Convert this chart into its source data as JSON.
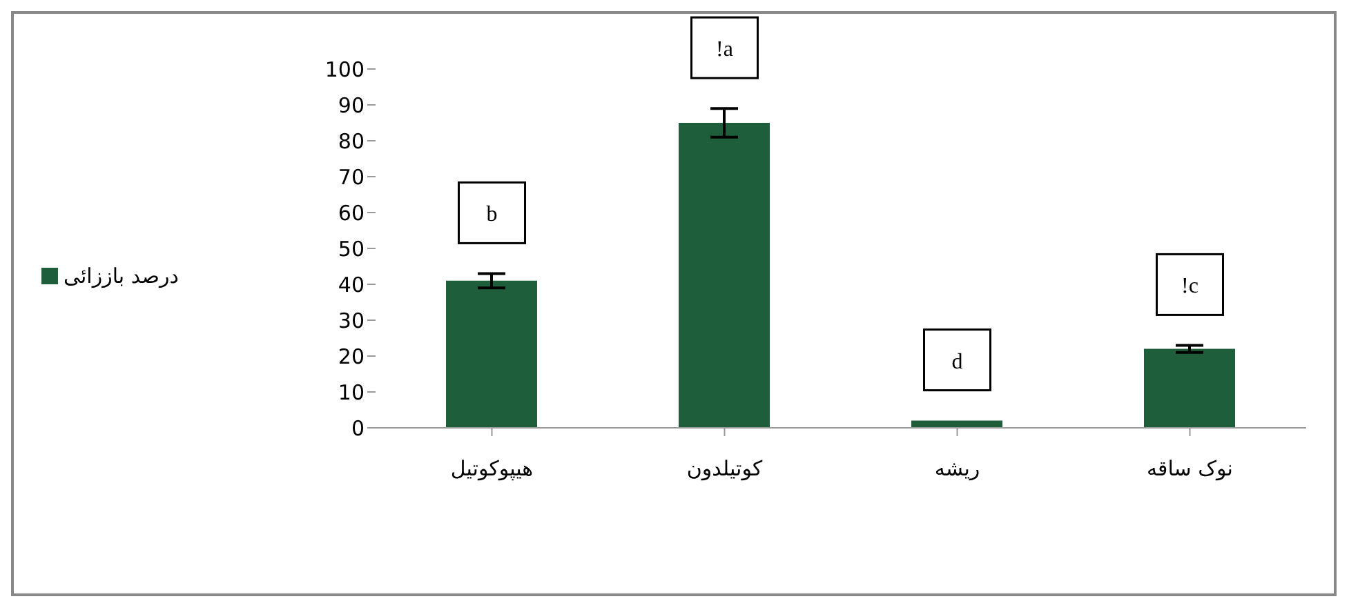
{
  "chart_data": {
    "type": "bar",
    "categories": [
      "هیپوکوتیل",
      "کوتیلدون",
      "ریشه",
      "نوک ساقه"
    ],
    "series": [
      {
        "name": "درصد باززائی",
        "color": "#1e5e3a",
        "values": [
          41,
          85,
          2,
          22
        ],
        "errors": [
          2,
          4,
          null,
          1
        ]
      }
    ],
    "ylim": [
      0,
      100
    ],
    "yticks": [
      0,
      10,
      20,
      30,
      40,
      50,
      60,
      70,
      80,
      90,
      100
    ],
    "grid": false,
    "legend": "left",
    "annotations": [
      "b",
      "!a",
      "d",
      "!c"
    ]
  }
}
